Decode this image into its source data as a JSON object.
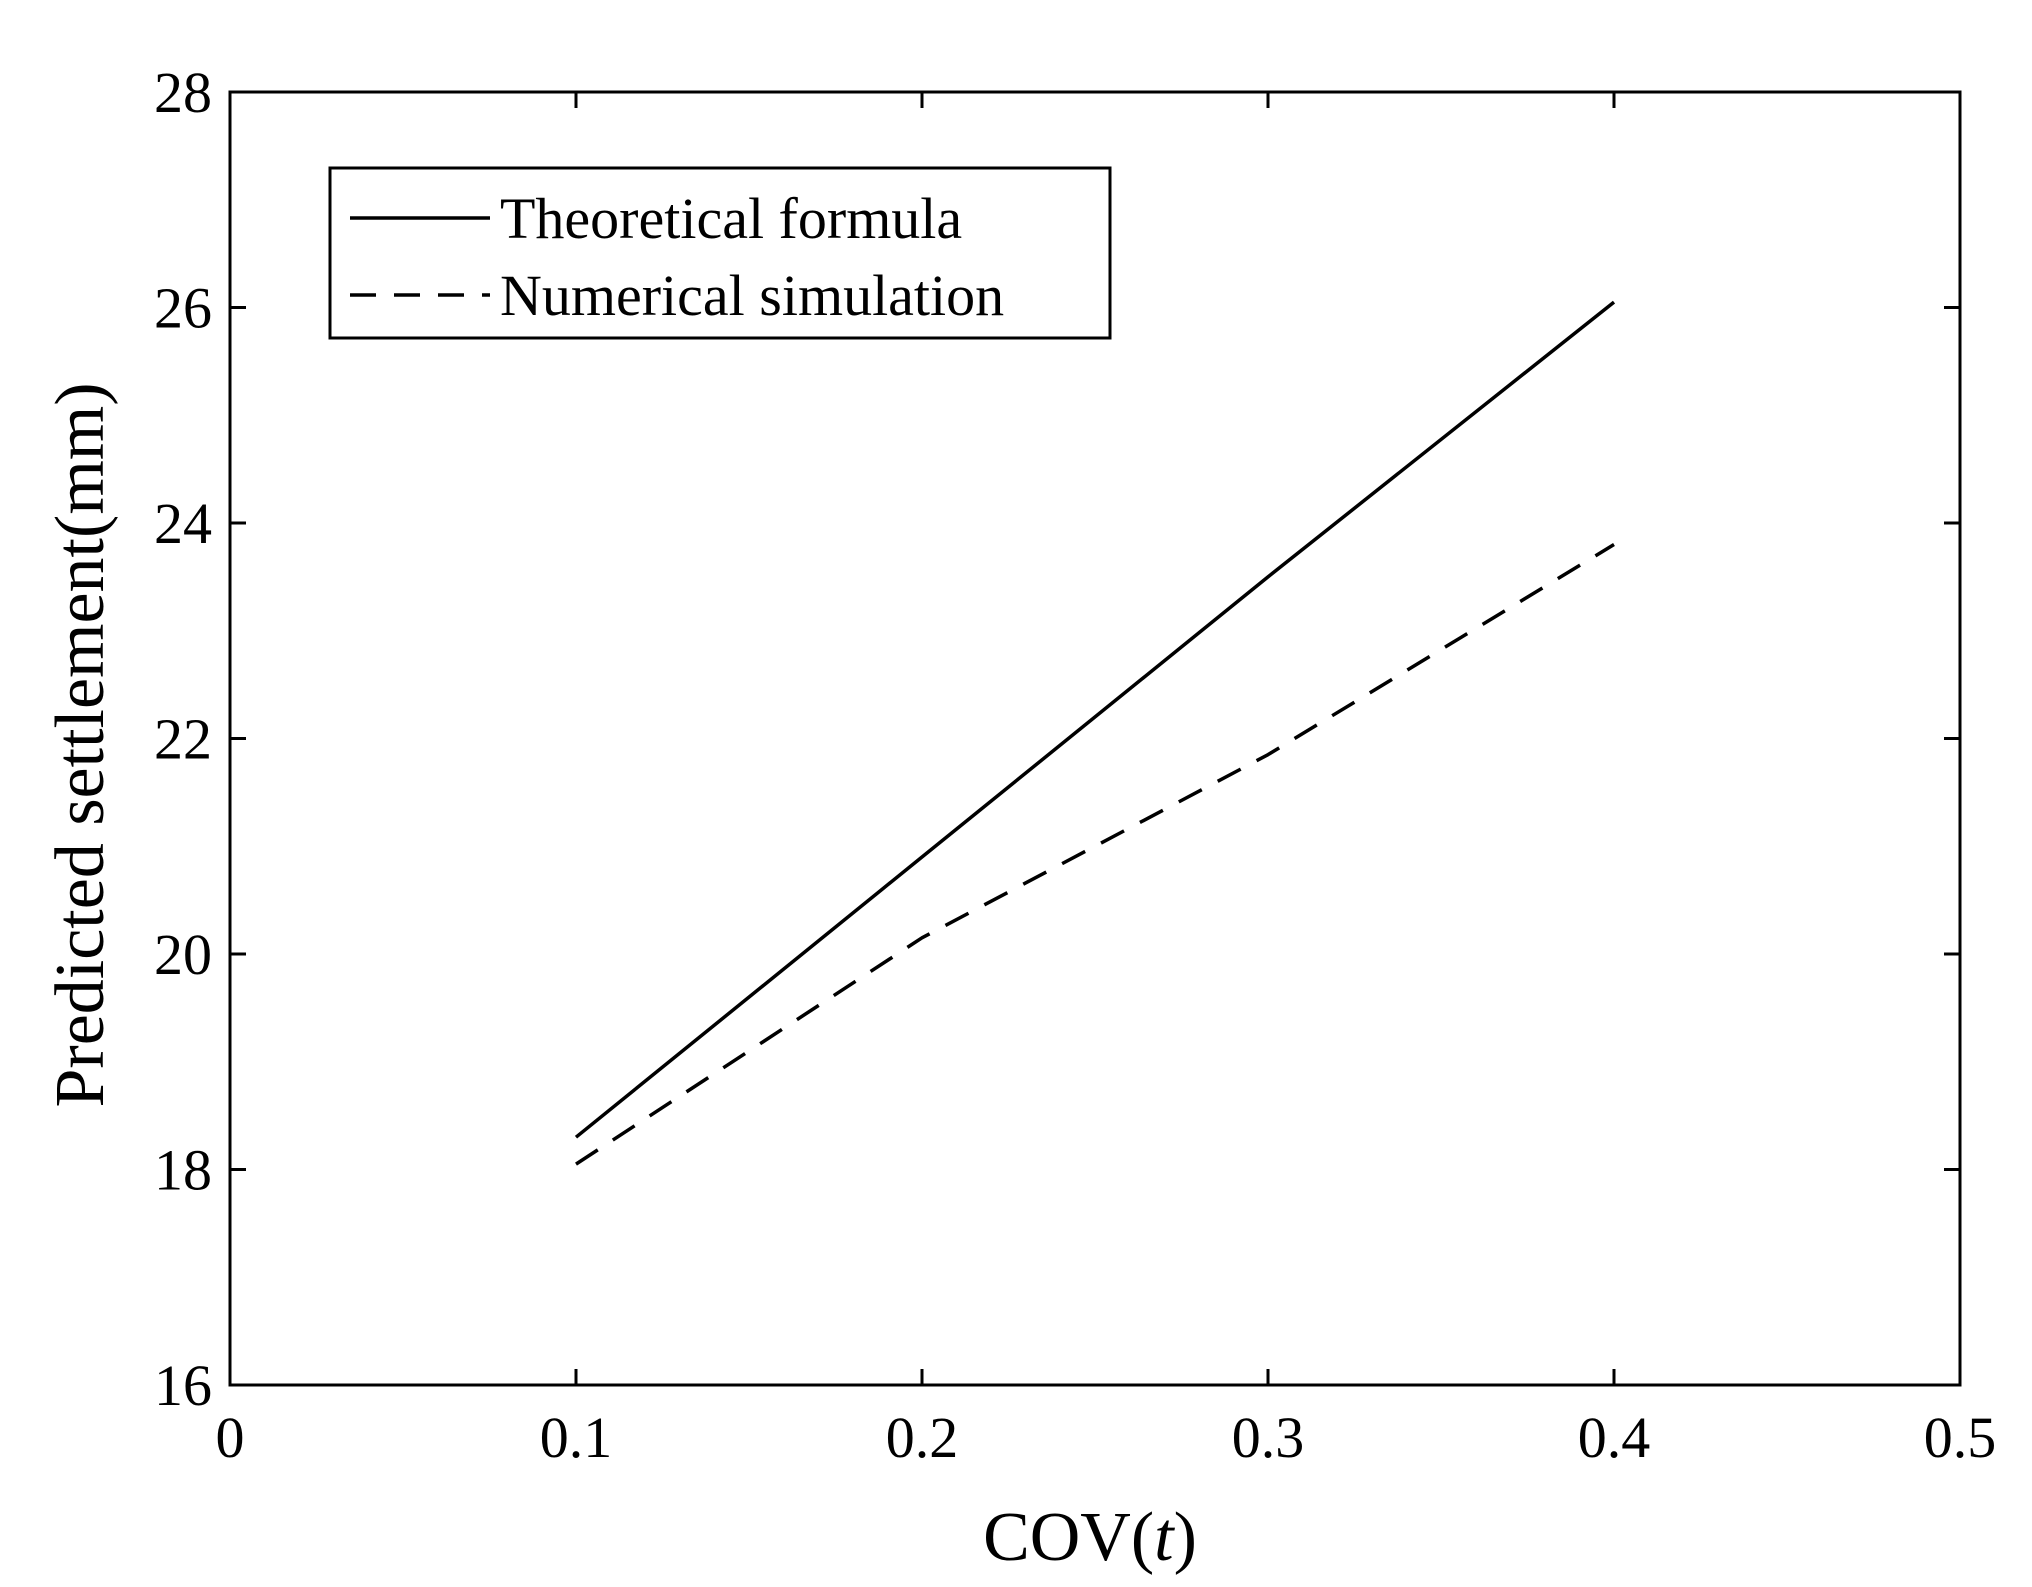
{
  "chart_data": {
    "type": "line",
    "x": [
      0.1,
      0.2,
      0.3,
      0.4
    ],
    "series": [
      {
        "name": "Theoretical formula",
        "values": [
          18.3,
          20.9,
          23.5,
          26.05
        ],
        "style": "solid",
        "color": "#000000"
      },
      {
        "name": "Numerical simulation",
        "values": [
          18.05,
          20.15,
          21.85,
          23.8
        ],
        "style": "dashed",
        "color": "#000000"
      }
    ],
    "title": "",
    "xlabel_main": "COV(",
    "xlabel_italic": "t",
    "xlabel_close": ")",
    "ylabel": "Predicted settlement(mm)",
    "xlim": [
      0,
      0.5
    ],
    "ylim": [
      16,
      28
    ],
    "xticks": [
      0,
      0.1,
      0.2,
      0.3,
      0.4,
      0.5
    ],
    "xtick_labels": [
      "0",
      "0.1",
      "0.2",
      "0.3",
      "0.4",
      "0.5"
    ],
    "yticks": [
      16,
      18,
      20,
      22,
      24,
      26,
      28
    ],
    "ytick_labels": [
      "16",
      "18",
      "20",
      "22",
      "24",
      "26",
      "28"
    ],
    "grid": false,
    "legend_position": "top-left"
  }
}
